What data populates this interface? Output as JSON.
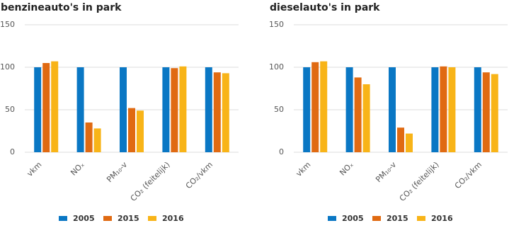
{
  "chart_data": [
    {
      "type": "bar",
      "title": "benzineauto's in park",
      "categories": [
        "vkm",
        "NOₓ",
        "PM₁₀-v",
        "CO₂ (feitelijk)",
        "CO₂/vkm"
      ],
      "series": [
        {
          "name": "2005",
          "color": "#0a77c4",
          "values": [
            100,
            100,
            100,
            100,
            100
          ]
        },
        {
          "name": "2015",
          "color": "#e06a12",
          "values": [
            105,
            35,
            52,
            99,
            94
          ]
        },
        {
          "name": "2016",
          "color": "#f8b418",
          "values": [
            107,
            28,
            49,
            101,
            93
          ]
        }
      ],
      "ylim": [
        0,
        150
      ],
      "yticks": [
        0,
        50,
        100,
        150
      ],
      "grid": true
    },
    {
      "type": "bar",
      "title": "dieselauto's in park",
      "categories": [
        "vkm",
        "NOₓ",
        "PM₁₀-v",
        "CO₂ (feitelijk)",
        "CO₂/vkm"
      ],
      "series": [
        {
          "name": "2005",
          "color": "#0a77c4",
          "values": [
            100,
            100,
            100,
            100,
            100
          ]
        },
        {
          "name": "2015",
          "color": "#e06a12",
          "values": [
            106,
            88,
            29,
            101,
            94
          ]
        },
        {
          "name": "2016",
          "color": "#f8b418",
          "values": [
            107,
            80,
            22,
            100,
            92
          ]
        }
      ],
      "ylim": [
        0,
        150
      ],
      "yticks": [
        0,
        50,
        100,
        150
      ],
      "grid": true
    }
  ]
}
